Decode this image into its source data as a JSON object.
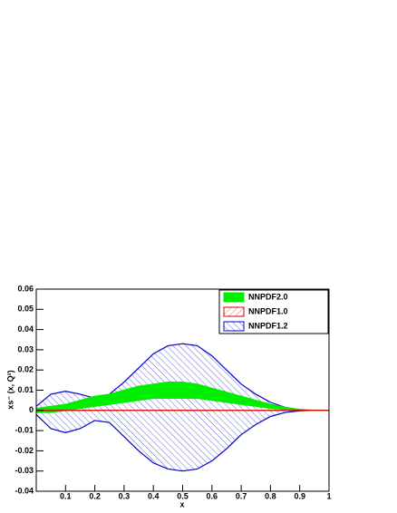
{
  "chart_data": {
    "type": "band",
    "x_label": "x",
    "y_label": "xs⁻ (x, Q²)",
    "x": [
      0,
      0.05,
      0.1,
      0.15,
      0.2,
      0.25,
      0.3,
      0.35,
      0.4,
      0.45,
      0.5,
      0.55,
      0.6,
      0.65,
      0.7,
      0.75,
      0.8,
      0.85,
      0.9,
      0.95,
      1
    ],
    "series": [
      {
        "name": "NNPDF1.2",
        "color": "#0000cc",
        "fill": "hatch-back",
        "upper": [
          0.002,
          0.008,
          0.0095,
          0.008,
          0.006,
          0.008,
          0.014,
          0.021,
          0.028,
          0.032,
          0.033,
          0.032,
          0.027,
          0.02,
          0.013,
          0.008,
          0.004,
          0.0015,
          0.0003,
          0,
          0
        ],
        "lower": [
          -0.002,
          -0.009,
          -0.011,
          -0.009,
          -0.005,
          -0.006,
          -0.013,
          -0.02,
          -0.026,
          -0.029,
          -0.03,
          -0.029,
          -0.025,
          -0.019,
          -0.012,
          -0.007,
          -0.003,
          -0.001,
          -0.0002,
          0,
          0
        ]
      },
      {
        "name": "NNPDF2.0",
        "color": "#00ee00",
        "fill": "solid",
        "upper": [
          0.001,
          0.002,
          0.003,
          0.005,
          0.007,
          0.008,
          0.01,
          0.012,
          0.013,
          0.014,
          0.014,
          0.013,
          0.011,
          0.009,
          0.007,
          0.005,
          0.003,
          0.0015,
          0.0005,
          0.0001,
          0
        ],
        "lower": [
          -0.001,
          -0.001,
          0,
          0.001,
          0.002,
          0.003,
          0.004,
          0.005,
          0.006,
          0.006,
          0.006,
          0.006,
          0.005,
          0.004,
          0.003,
          0.002,
          0.001,
          0.0005,
          0.0001,
          0,
          0
        ]
      },
      {
        "name": "NNPDF1.0",
        "color": "#dd0000",
        "fill": "hatch-fwd",
        "upper": [
          0,
          0,
          0,
          0,
          0,
          0,
          0,
          0,
          0,
          0,
          0,
          0,
          0,
          0,
          0,
          0,
          0,
          0,
          0,
          0,
          0
        ],
        "lower": [
          0,
          0,
          0,
          0,
          0,
          0,
          0,
          0,
          0,
          0,
          0,
          0,
          0,
          0,
          0,
          0,
          0,
          0,
          0,
          0,
          0
        ]
      }
    ],
    "legend_order": [
      1,
      2,
      0
    ],
    "xlim": [
      0,
      1
    ],
    "xticks": [
      0.1,
      0.2,
      0.3,
      0.4,
      0.5,
      0.6,
      0.7,
      0.8,
      0.9,
      1
    ],
    "ylim": [
      -0.04,
      0.06
    ],
    "yticks": [
      -0.04,
      -0.03,
      -0.02,
      -0.01,
      0,
      0.01,
      0.02,
      0.03,
      0.04,
      0.05,
      0.06
    ],
    "legend": "top-right"
  }
}
